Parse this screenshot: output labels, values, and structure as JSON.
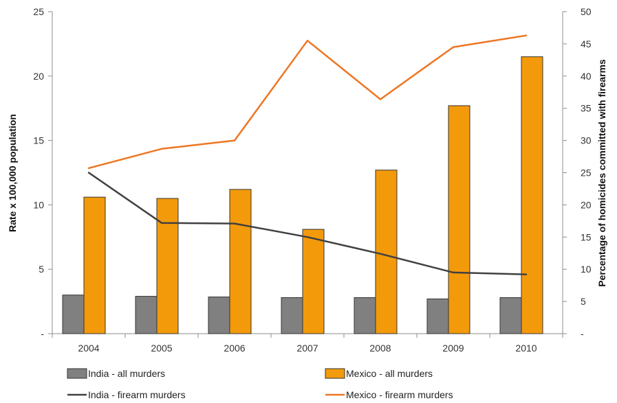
{
  "chart_data": {
    "type": "bar",
    "categories": [
      "2004",
      "2005",
      "2006",
      "2007",
      "2008",
      "2009",
      "2010"
    ],
    "y_left": {
      "label": "Rate x 100,000 population",
      "ylim": [
        0,
        25
      ],
      "ticks": [
        "-",
        "5",
        "10",
        "15",
        "20",
        "25"
      ]
    },
    "y_right": {
      "label": "Percentage of homicides committed with firearms",
      "ylim": [
        0,
        50
      ],
      "ticks": [
        "-",
        "5",
        "10",
        "15",
        "20",
        "25",
        "30",
        "35",
        "40",
        "45",
        "50"
      ]
    },
    "bar_series": [
      {
        "name": "India - all murders",
        "color": "#808080",
        "axis": "left",
        "values": [
          3.0,
          2.9,
          2.85,
          2.8,
          2.8,
          2.7,
          2.8
        ]
      },
      {
        "name": "Mexico - all murders",
        "color": "#F39A0B",
        "axis": "left",
        "values": [
          10.6,
          10.5,
          11.2,
          8.1,
          12.7,
          17.7,
          21.5
        ]
      }
    ],
    "line_series": [
      {
        "name": "India - firearm murders",
        "color": "#404040",
        "axis": "right",
        "values": [
          25.0,
          17.2,
          17.1,
          15.0,
          12.4,
          9.5,
          9.2
        ]
      },
      {
        "name": "Mexico - firearm murders",
        "color": "#EE7522",
        "axis": "right",
        "values": [
          25.7,
          28.7,
          30.0,
          45.5,
          36.4,
          44.5,
          46.3
        ]
      }
    ],
    "grid": false,
    "legend_placement": "bottom"
  }
}
